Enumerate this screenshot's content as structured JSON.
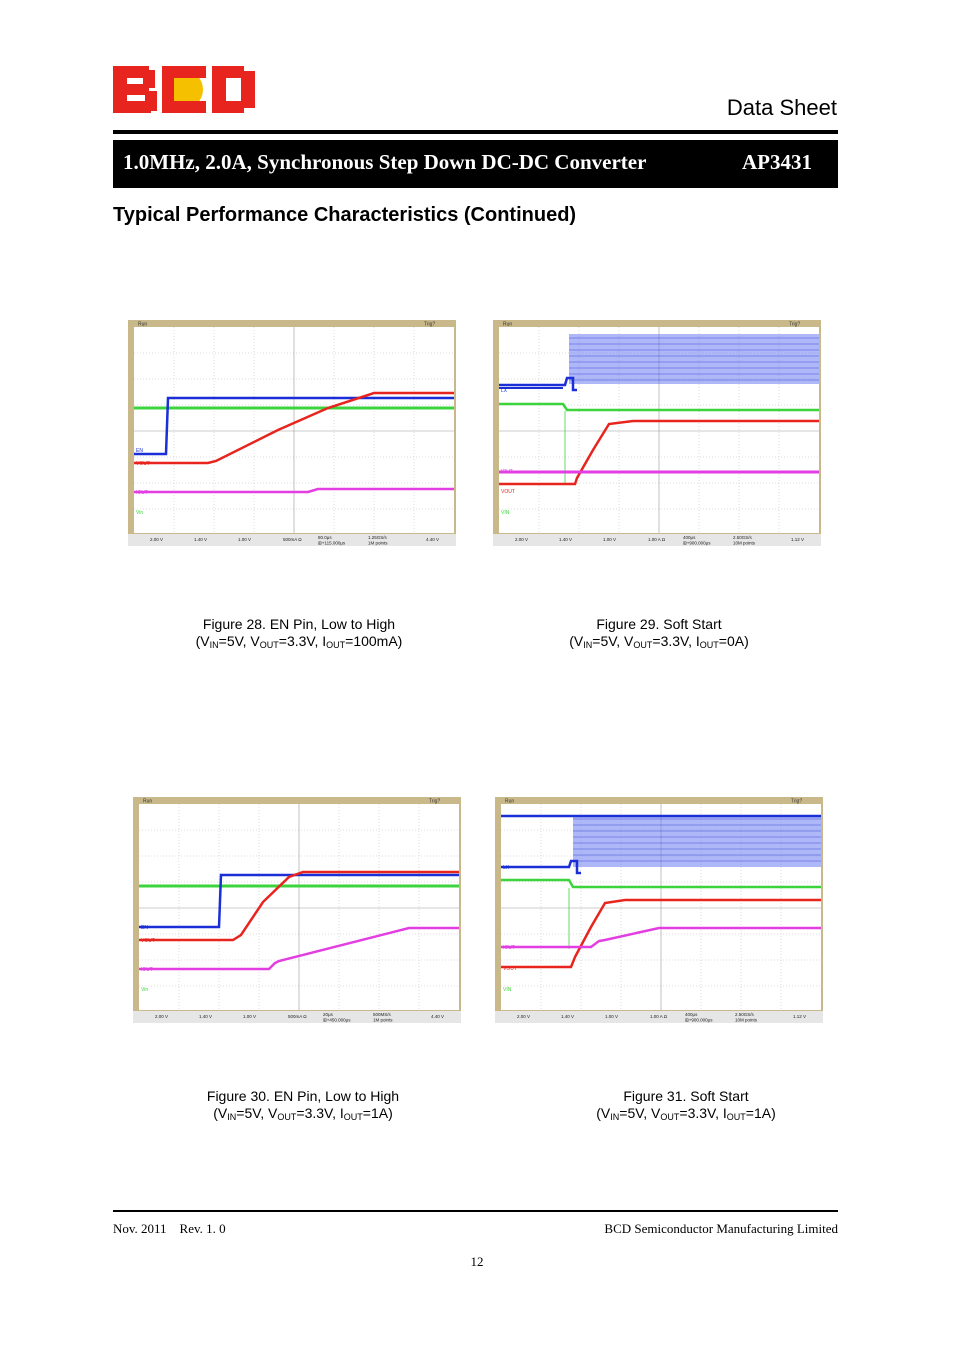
{
  "header": {
    "logo_text": "BCD",
    "doc_type": "Data Sheet",
    "title": "1.0MHz, 2.0A, Synchronous Step Down DC-DC Converter",
    "part_number": "AP3431"
  },
  "section_title": "Typical Performance Characteristics (Continued)",
  "figures": [
    {
      "caption_line1": "Figure 28. EN Pin, Low to High",
      "cond": {
        "pre": "(V",
        "s1": "IN",
        "t1": "=5V, V",
        "s2": "OUT",
        "t2": "=3.3V, I",
        "s3": "OUT",
        "t3": "=100mA)"
      },
      "scope": {
        "top_left": "Run",
        "top_right": "Trig?",
        "channel_labels": [
          "EN",
          "VOUT",
          "IOUT",
          "Vin"
        ],
        "status": [
          "2.00 V",
          "1.40 V",
          "1.00 V",
          "500mA Ω",
          "80.0μs",
          "1.25GS/s",
          "4.40 V"
        ],
        "status_sub": [
          "⊞+115.000μs",
          "1M points"
        ]
      }
    },
    {
      "caption_line1": "Figure 29. Soft Start",
      "cond": {
        "pre": "(V",
        "s1": "IN",
        "t1": "=5V, V",
        "s2": "OUT",
        "t2": "=3.3V, I",
        "s3": "OUT",
        "t3": "=0A)"
      },
      "scope": {
        "top_left": "Run",
        "top_right": "Trig?",
        "channel_labels": [
          "LX",
          "IOUT",
          "VOUT",
          "VIN"
        ],
        "status": [
          "2.00 V",
          "1.40 V",
          "1.00 V",
          "1.00 A Ω",
          "400μs",
          "2.50GS/s",
          "1.12 V"
        ],
        "status_sub": [
          "⊞+900.000μs",
          "10M points"
        ]
      }
    },
    {
      "caption_line1": "Figure 30. EN Pin, Low to High",
      "cond": {
        "pre": "(V",
        "s1": "IN",
        "t1": "=5V, V",
        "s2": "OUT",
        "t2": "=3.3V, I",
        "s3": "OUT",
        "t3": "=1A)"
      },
      "scope": {
        "top_left": "Run",
        "top_right": "Trig?",
        "channel_labels": [
          "EN",
          "VOUT",
          "IOUT",
          "Vin"
        ],
        "status": [
          "2.00 V",
          "1.40 V",
          "1.00 V",
          "500mA Ω",
          "20μs",
          "500MS/s",
          "4.40 V"
        ],
        "status_sub": [
          "⊞+450.000μs",
          "1M points"
        ]
      }
    },
    {
      "caption_line1": "Figure 31. Soft Start",
      "cond": {
        "pre": "(V",
        "s1": "IN",
        "t1": "=5V, V",
        "s2": "OUT",
        "t2": "=3.3V, I",
        "s3": "OUT",
        "t3": "=1A)"
      },
      "scope": {
        "top_left": "Run",
        "top_right": "Trig?",
        "channel_labels": [
          "LX",
          "IOUT",
          "VOUT",
          "VIN"
        ],
        "status": [
          "2.00 V",
          "1.40 V",
          "1.00 V",
          "1.00 A Ω",
          "400μs",
          "2.50GS/s",
          "1.12 V"
        ],
        "status_sub": [
          "⊞+900.000μs",
          "10M points"
        ]
      }
    }
  ],
  "footer": {
    "date_rev": "Nov. 2011    Rev. 1. 0",
    "company": "BCD Semiconductor Manufacturing Limited",
    "page_number": "12"
  },
  "colors": {
    "blue": "#1a2fd6",
    "red": "#e8241e",
    "green": "#3cd43c",
    "magenta": "#e23ee2",
    "scope_frame": "#c8b88a",
    "scope_bg": "#ffffff",
    "logo_red": "#e8241e",
    "logo_yellow": "#f5c000"
  }
}
